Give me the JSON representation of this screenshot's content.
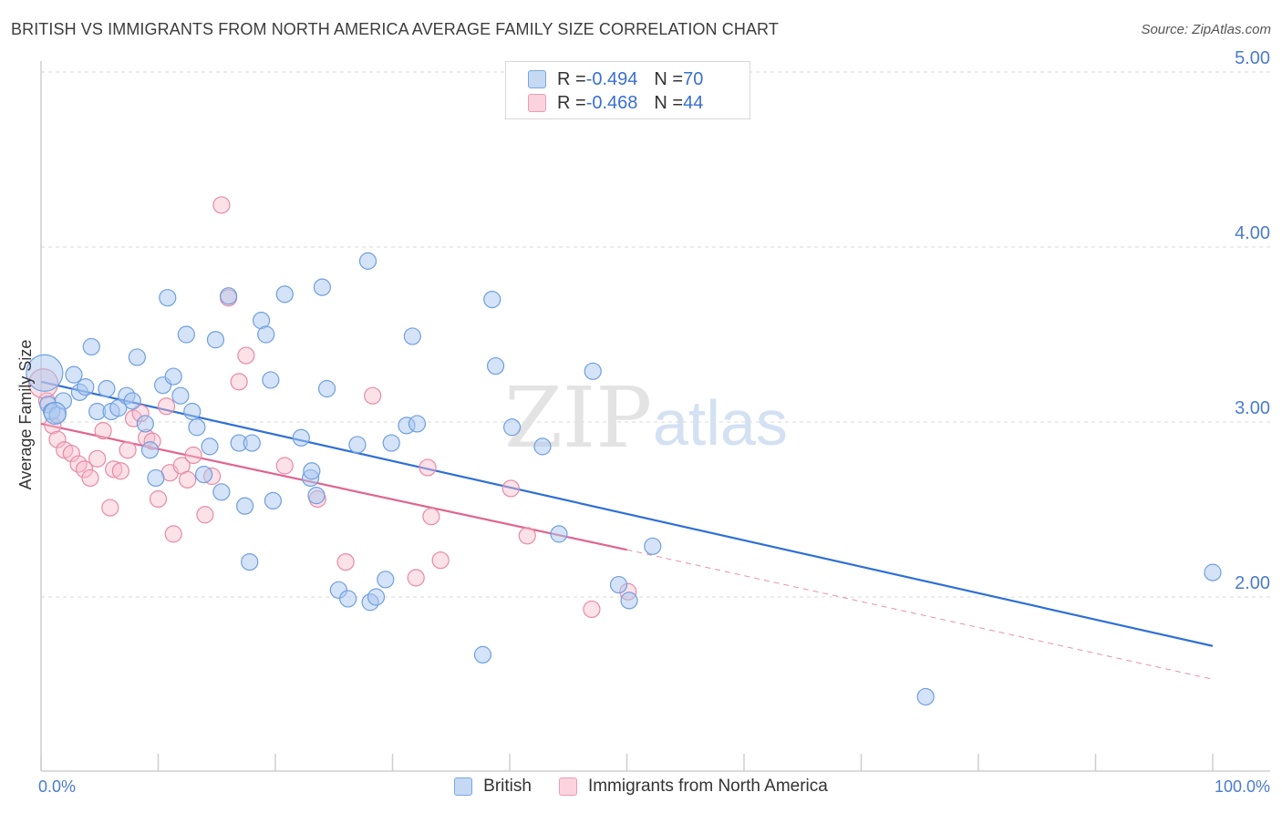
{
  "title": "BRITISH VS IMMIGRANTS FROM NORTH AMERICA AVERAGE FAMILY SIZE CORRELATION CHART",
  "source": "Source: ZipAtlas.com",
  "watermark": {
    "zip": "ZIP",
    "atlas": "atlas"
  },
  "colors": {
    "british_fill": "#a9c7ef",
    "british_stroke": "#6f9fe0",
    "british_line": "#2f6fd6",
    "immig_fill": "#f6bccc",
    "immig_stroke": "#e88aa6",
    "immig_line": "#e0648d",
    "tick_text": "#4a7bd0",
    "grid": "#d9d9d9"
  },
  "legend": {
    "british": {
      "r_label": "R = ",
      "r_value": "-0.494",
      "n_label": "N = ",
      "n_value": "70"
    },
    "immigrants": {
      "r_label": "R = ",
      "r_value": "-0.468",
      "n_label": "N = ",
      "n_value": "44"
    }
  },
  "bottom_legend": {
    "british": "British",
    "immigrants": "Immigrants from North America"
  },
  "chart_data": {
    "type": "scatter",
    "title": "BRITISH VS IMMIGRANTS FROM NORTH AMERICA AVERAGE FAMILY SIZE CORRELATION CHART",
    "xlabel": "",
    "ylabel": "Average Family Size",
    "x_ticks": [
      "0.0%",
      "100.0%"
    ],
    "y_ticks": [
      "2.00",
      "3.00",
      "4.00",
      "5.00"
    ],
    "xlim": [
      0,
      100
    ],
    "ylim": [
      1.05,
      5.1
    ],
    "grid": true,
    "legend_position": "top-center",
    "series": [
      {
        "name": "British",
        "r": -0.494,
        "n": 70,
        "trend": {
          "x": [
            0,
            100
          ],
          "y": [
            3.23,
            1.72
          ]
        },
        "points": [
          [
            0.3,
            3.28
          ],
          [
            0.6,
            3.1
          ],
          [
            0.9,
            3.06
          ],
          [
            1.4,
            3.04
          ],
          [
            1.9,
            3.12
          ],
          [
            2.8,
            3.27
          ],
          [
            3.3,
            3.17
          ],
          [
            3.8,
            3.2
          ],
          [
            4.3,
            3.43
          ],
          [
            4.8,
            3.06
          ],
          [
            5.6,
            3.19
          ],
          [
            6.0,
            3.06
          ],
          [
            6.6,
            3.08
          ],
          [
            7.3,
            3.15
          ],
          [
            7.8,
            3.12
          ],
          [
            8.2,
            3.37
          ],
          [
            8.9,
            2.99
          ],
          [
            9.3,
            2.84
          ],
          [
            9.8,
            2.68
          ],
          [
            10.4,
            3.21
          ],
          [
            10.8,
            3.71
          ],
          [
            11.3,
            3.26
          ],
          [
            11.9,
            3.15
          ],
          [
            12.4,
            3.5
          ],
          [
            12.9,
            3.06
          ],
          [
            13.3,
            2.97
          ],
          [
            13.9,
            2.7
          ],
          [
            14.4,
            2.86
          ],
          [
            14.9,
            3.47
          ],
          [
            15.4,
            2.6
          ],
          [
            16.0,
            3.72
          ],
          [
            16.9,
            2.88
          ],
          [
            17.4,
            2.52
          ],
          [
            17.8,
            2.2
          ],
          [
            18.0,
            2.88
          ],
          [
            18.8,
            3.58
          ],
          [
            19.2,
            3.5
          ],
          [
            19.6,
            3.24
          ],
          [
            19.8,
            2.55
          ],
          [
            20.8,
            3.73
          ],
          [
            22.2,
            2.91
          ],
          [
            23.0,
            2.68
          ],
          [
            23.1,
            2.72
          ],
          [
            23.5,
            2.58
          ],
          [
            24.0,
            3.77
          ],
          [
            24.4,
            3.19
          ],
          [
            25.4,
            2.04
          ],
          [
            26.2,
            1.99
          ],
          [
            27.0,
            2.87
          ],
          [
            27.9,
            3.92
          ],
          [
            28.1,
            1.97
          ],
          [
            28.6,
            2.0
          ],
          [
            29.4,
            2.1
          ],
          [
            29.9,
            2.88
          ],
          [
            31.2,
            2.98
          ],
          [
            31.7,
            3.49
          ],
          [
            32.1,
            2.99
          ],
          [
            37.7,
            1.67
          ],
          [
            38.5,
            3.7
          ],
          [
            38.8,
            3.32
          ],
          [
            40.2,
            2.97
          ],
          [
            42.8,
            2.86
          ],
          [
            44.2,
            2.36
          ],
          [
            47.1,
            3.29
          ],
          [
            49.3,
            2.07
          ],
          [
            50.2,
            1.98
          ],
          [
            52.2,
            2.29
          ],
          [
            75.5,
            1.43
          ],
          [
            100.0,
            2.14
          ],
          [
            1.2,
            3.05
          ]
        ]
      },
      {
        "name": "Immigrants from North America",
        "r": -0.468,
        "n": 44,
        "trend": {
          "x": [
            0,
            50
          ],
          "y": [
            2.99,
            2.27
          ],
          "extended": {
            "x": [
              50,
              100
            ],
            "y": [
              2.27,
              1.53
            ]
          }
        },
        "points": [
          [
            0.5,
            3.12
          ],
          [
            1.0,
            2.98
          ],
          [
            1.4,
            2.9
          ],
          [
            2.0,
            2.84
          ],
          [
            2.6,
            2.82
          ],
          [
            3.2,
            2.76
          ],
          [
            3.7,
            2.73
          ],
          [
            4.2,
            2.68
          ],
          [
            4.8,
            2.79
          ],
          [
            5.3,
            2.95
          ],
          [
            5.9,
            2.51
          ],
          [
            6.2,
            2.73
          ],
          [
            6.8,
            2.72
          ],
          [
            7.4,
            2.84
          ],
          [
            7.9,
            3.02
          ],
          [
            8.5,
            3.05
          ],
          [
            9.0,
            2.91
          ],
          [
            9.5,
            2.89
          ],
          [
            10.0,
            2.56
          ],
          [
            10.7,
            3.09
          ],
          [
            11.0,
            2.71
          ],
          [
            11.3,
            2.36
          ],
          [
            12.0,
            2.75
          ],
          [
            12.5,
            2.67
          ],
          [
            13.0,
            2.81
          ],
          [
            14.0,
            2.47
          ],
          [
            14.6,
            2.69
          ],
          [
            15.4,
            4.24
          ],
          [
            16.0,
            3.71
          ],
          [
            16.9,
            3.23
          ],
          [
            17.5,
            3.38
          ],
          [
            20.8,
            2.75
          ],
          [
            23.6,
            2.56
          ],
          [
            26.0,
            2.2
          ],
          [
            28.3,
            3.15
          ],
          [
            32.0,
            2.11
          ],
          [
            33.0,
            2.74
          ],
          [
            33.3,
            2.46
          ],
          [
            34.1,
            2.21
          ],
          [
            40.1,
            2.62
          ],
          [
            41.5,
            2.35
          ],
          [
            47.0,
            1.93
          ],
          [
            50.1,
            2.03
          ],
          [
            0.2,
            3.22
          ]
        ]
      }
    ]
  }
}
